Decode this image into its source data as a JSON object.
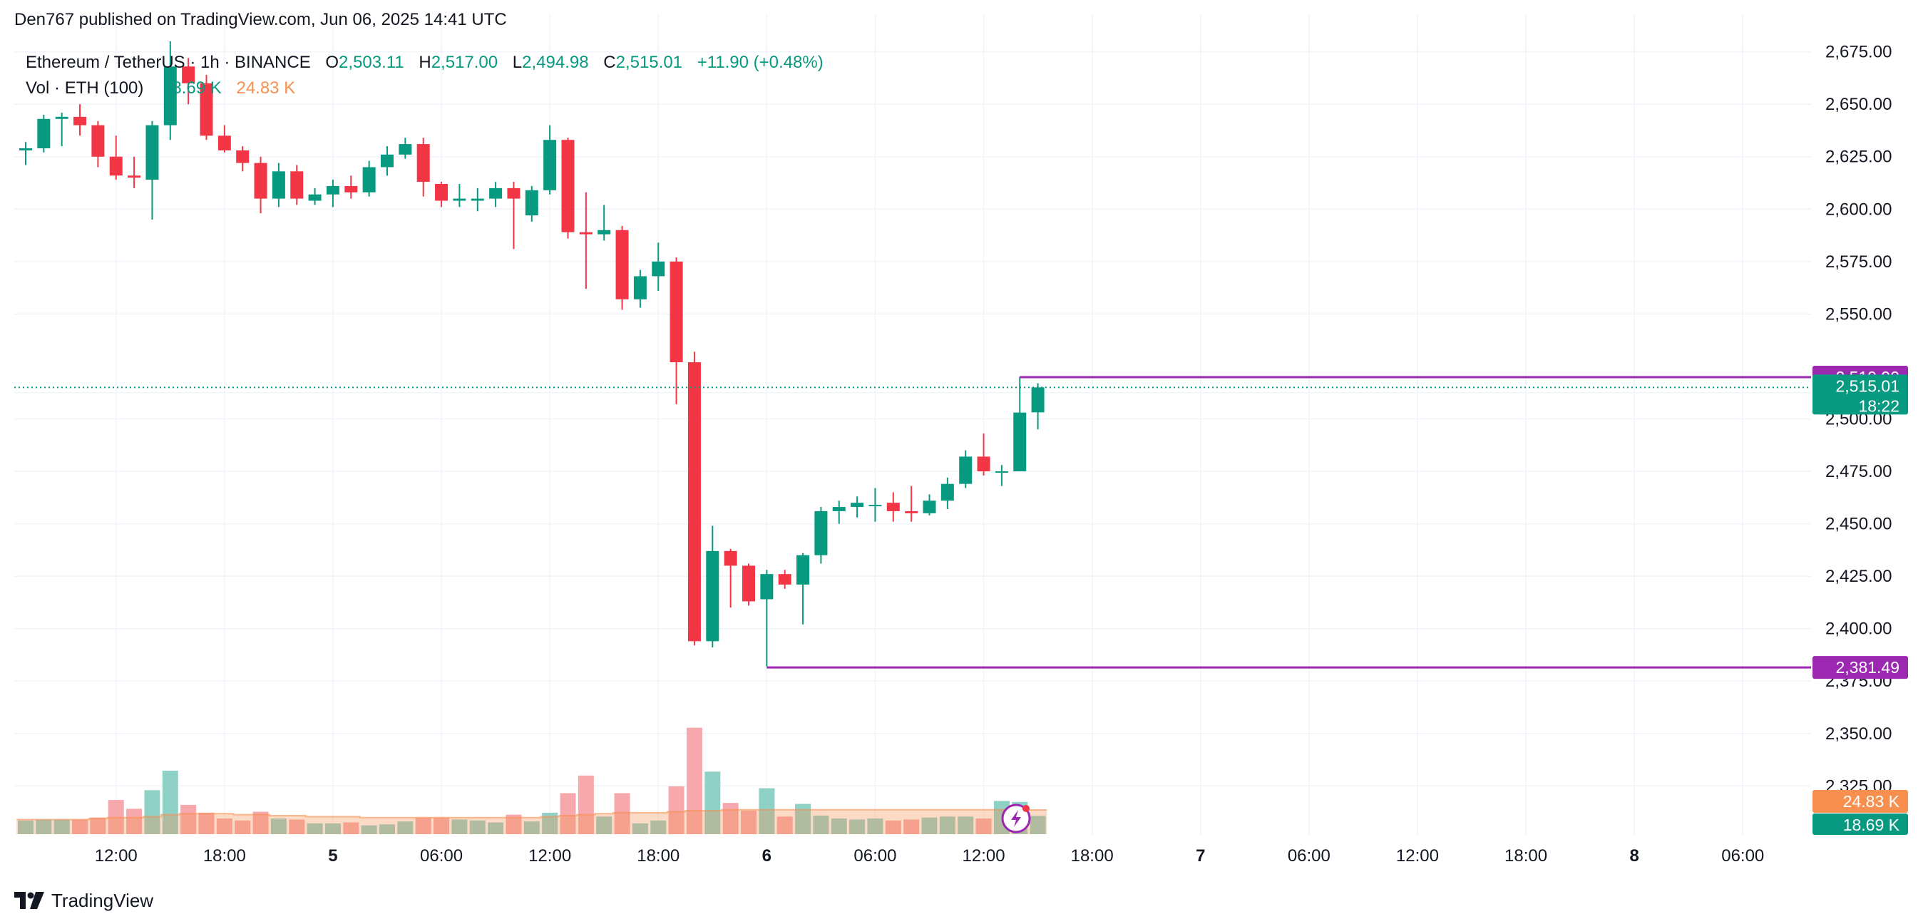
{
  "publisher_line": "Den767 published on TradingView.com, Jun 06, 2025 14:41 UTC",
  "brand": "TradingView",
  "brand_icon": "tradingview-logo-icon",
  "colors": {
    "up": "#089981",
    "down": "#f23645",
    "up_volume": "#8fd0c7",
    "down_volume": "#f7a8ad",
    "vol_ma": "#f7904f",
    "level_line": "#9c27b0",
    "grid": "#f0f3fa",
    "axis_text": "#131722"
  },
  "legend": {
    "symbol": "Ethereum / TetherUS · 1h · BINANCE",
    "o_label": "O",
    "o_value": "2,503.11",
    "h_label": "H",
    "h_value": "2,517.00",
    "l_label": "L",
    "l_value": "2,494.98",
    "c_label": "C",
    "c_value": "2,515.01",
    "change": "+11.90 (+0.48%)",
    "vol_label": "Vol · ETH (100)",
    "vol_value": "18.69 K",
    "vol_ma_value": "24.83 K"
  },
  "chart_data": {
    "type": "candlestick",
    "timeframe": "1h",
    "ylim": [
      2302,
      2681
    ],
    "y_ticks": [
      "2,675.00",
      "2,650.00",
      "2,625.00",
      "2,600.00",
      "2,575.00",
      "2,550.00",
      "2,500.00",
      "2,475.00",
      "2,450.00",
      "2,425.00",
      "2,400.00",
      "2,375.00",
      "2,350.00",
      "2,325.00"
    ],
    "y_tick_values": [
      2675,
      2650,
      2625,
      2600,
      2575,
      2550,
      2500,
      2475,
      2450,
      2425,
      2400,
      2375,
      2350,
      2325
    ],
    "x_tick_labels": [
      "12:00",
      "18:00",
      "5",
      "06:00",
      "12:00",
      "18:00",
      "6",
      "06:00",
      "12:00",
      "18:00",
      "7",
      "06:00",
      "12:00",
      "18:00",
      "8",
      "06:00"
    ],
    "x_tick_hours": [
      12,
      18,
      24,
      30,
      36,
      42,
      48,
      54,
      60,
      66,
      72,
      78,
      84,
      90,
      96,
      102
    ],
    "bold_x_ticks": [
      "5",
      "6",
      "7",
      "8"
    ],
    "first_bar_hour": 7,
    "candles": [
      [
        2628.0,
        2632.0,
        2621.0,
        2629.0,
        14
      ],
      [
        2629.0,
        2645.0,
        2627.0,
        2643.0,
        15
      ],
      [
        2643.0,
        2646.0,
        2630.0,
        2644.0,
        15
      ],
      [
        2644.0,
        2650.0,
        2635.0,
        2640.0,
        15
      ],
      [
        2640.0,
        2642.0,
        2620.0,
        2625.0,
        17
      ],
      [
        2625.0,
        2635.0,
        2614.0,
        2616.0,
        35
      ],
      [
        2616.0,
        2625.0,
        2610.0,
        2615.0,
        26
      ],
      [
        2614.0,
        2642.0,
        2595.0,
        2640.0,
        45
      ],
      [
        2640.0,
        2680.0,
        2633.0,
        2668.0,
        65
      ],
      [
        2668.0,
        2672.0,
        2650.0,
        2660.0,
        30
      ],
      [
        2660.0,
        2664.0,
        2633.0,
        2635.0,
        22
      ],
      [
        2635.0,
        2640.0,
        2627.0,
        2628.0,
        16
      ],
      [
        2628.0,
        2630.0,
        2618.0,
        2622.0,
        14
      ],
      [
        2622.0,
        2625.0,
        2598.0,
        2605.0,
        23
      ],
      [
        2605.0,
        2622.0,
        2601.0,
        2618.0,
        16
      ],
      [
        2618.0,
        2621.0,
        2602.0,
        2605.0,
        15
      ],
      [
        2604.0,
        2610.0,
        2602.0,
        2607.0,
        11
      ],
      [
        2607.0,
        2614.0,
        2601.0,
        2611.0,
        11
      ],
      [
        2611.0,
        2616.0,
        2605.0,
        2608.0,
        12
      ],
      [
        2608.0,
        2623.0,
        2606.0,
        2620.0,
        9
      ],
      [
        2620.0,
        2630.0,
        2616.0,
        2626.0,
        10
      ],
      [
        2626.0,
        2634.0,
        2624.0,
        2631.0,
        13
      ],
      [
        2631.0,
        2634.0,
        2606.0,
        2613.0,
        17
      ],
      [
        2612.0,
        2613.0,
        2601.0,
        2604.0,
        17
      ],
      [
        2604.0,
        2612.0,
        2601.0,
        2605.0,
        15
      ],
      [
        2604.0,
        2610.0,
        2599.0,
        2605.0,
        14
      ],
      [
        2605.0,
        2613.0,
        2601.0,
        2610.0,
        12
      ],
      [
        2610.0,
        2613.0,
        2581.0,
        2605.0,
        20
      ],
      [
        2597.0,
        2611.0,
        2594.0,
        2609.0,
        13
      ],
      [
        2609.0,
        2640.0,
        2607.0,
        2633.0,
        22
      ],
      [
        2633.0,
        2634.0,
        2586.0,
        2589.0,
        42
      ],
      [
        2589.0,
        2608.0,
        2562.0,
        2588.0,
        60
      ],
      [
        2588.0,
        2602.0,
        2585.0,
        2590.0,
        18
      ],
      [
        2590.0,
        2592.0,
        2552.0,
        2557.0,
        42
      ],
      [
        2557.0,
        2571.0,
        2553.0,
        2568.0,
        11
      ],
      [
        2568.0,
        2584.0,
        2561.0,
        2575.0,
        14
      ],
      [
        2575.0,
        2577.0,
        2507.0,
        2527.0,
        49
      ],
      [
        2527.0,
        2532.0,
        2392.0,
        2394.0,
        109
      ],
      [
        2394.0,
        2449.0,
        2391.0,
        2437.0,
        64
      ],
      [
        2437.0,
        2438.0,
        2410.0,
        2430.0,
        32
      ],
      [
        2430.0,
        2431.0,
        2411.0,
        2413.0,
        24
      ],
      [
        2414.0,
        2428.0,
        2382.0,
        2426.0,
        47
      ],
      [
        2426.0,
        2428.0,
        2419.0,
        2421.0,
        18
      ],
      [
        2421.0,
        2436.0,
        2402.0,
        2435.0,
        31
      ],
      [
        2435.0,
        2458.0,
        2431.0,
        2456.0,
        19
      ],
      [
        2456.0,
        2461.0,
        2450.0,
        2458.0,
        16
      ],
      [
        2458.0,
        2463.0,
        2453.0,
        2460.0,
        15
      ],
      [
        2459.0,
        2467.0,
        2451.0,
        2459.0,
        16
      ],
      [
        2460.0,
        2465.0,
        2451.0,
        2456.0,
        14
      ],
      [
        2456.0,
        2468.0,
        2451.0,
        2455.0,
        15
      ],
      [
        2455.0,
        2464.0,
        2454.0,
        2461.0,
        17
      ],
      [
        2461.0,
        2472.0,
        2457.0,
        2469.0,
        18
      ],
      [
        2469.0,
        2485.0,
        2467.0,
        2482.0,
        18
      ],
      [
        2482.0,
        2493.0,
        2473.0,
        2475.0,
        16
      ],
      [
        2475.0,
        2478.0,
        2468.0,
        2475.0,
        34
      ],
      [
        2475.0,
        2520.0,
        2475.0,
        2503.0,
        33
      ],
      [
        2503.11,
        2517.0,
        2494.98,
        2515.01,
        18.69
      ]
    ],
    "price_tag": "2,515.01",
    "countdown": "18:22",
    "levels": [
      {
        "value": 2519.9,
        "label": "2,519.90",
        "from_bar": 55
      },
      {
        "value": 2381.49,
        "label": "2,381.49",
        "from_bar": 41
      }
    ],
    "volume": {
      "name": "Vol · ETH (100)",
      "ma_label": "24.83 K",
      "last_label": "18.69 K",
      "ma_values": [
        15,
        15,
        15,
        15,
        16,
        17,
        17,
        18,
        20,
        21,
        21,
        21,
        20,
        20,
        19,
        19,
        18,
        18,
        18,
        17,
        17,
        17,
        17,
        17,
        17,
        17,
        17,
        17,
        17,
        18,
        19,
        20,
        21,
        22,
        22,
        22,
        23,
        24,
        24,
        25,
        25,
        25,
        25,
        25,
        25,
        25,
        25,
        25,
        25,
        25,
        25,
        25,
        25,
        25,
        25,
        25,
        24.83
      ]
    }
  }
}
